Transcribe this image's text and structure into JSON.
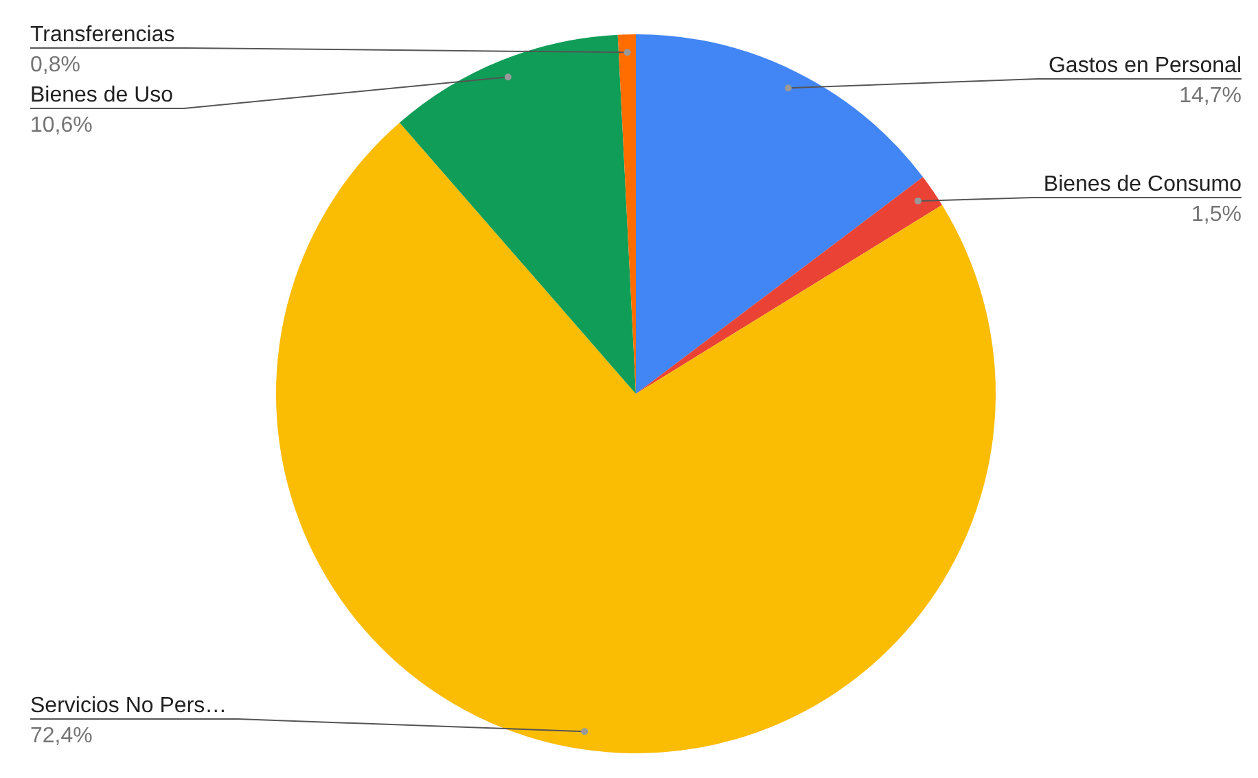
{
  "chart_data": {
    "type": "pie",
    "categories": [
      "Gastos en Personal",
      "Bienes de Consumo",
      "Servicios No Pers…",
      "Bienes de Uso",
      "Transferencias"
    ],
    "values": [
      14.7,
      1.5,
      72.4,
      10.6,
      0.8
    ],
    "value_labels": [
      "14,7%",
      "1,5%",
      "72,4%",
      "10,6%",
      "0,8%"
    ],
    "colors": [
      "#4285f4",
      "#ea4335",
      "#fbbc04",
      "#0f9d58",
      "#ff6d01"
    ],
    "legend": false
  }
}
